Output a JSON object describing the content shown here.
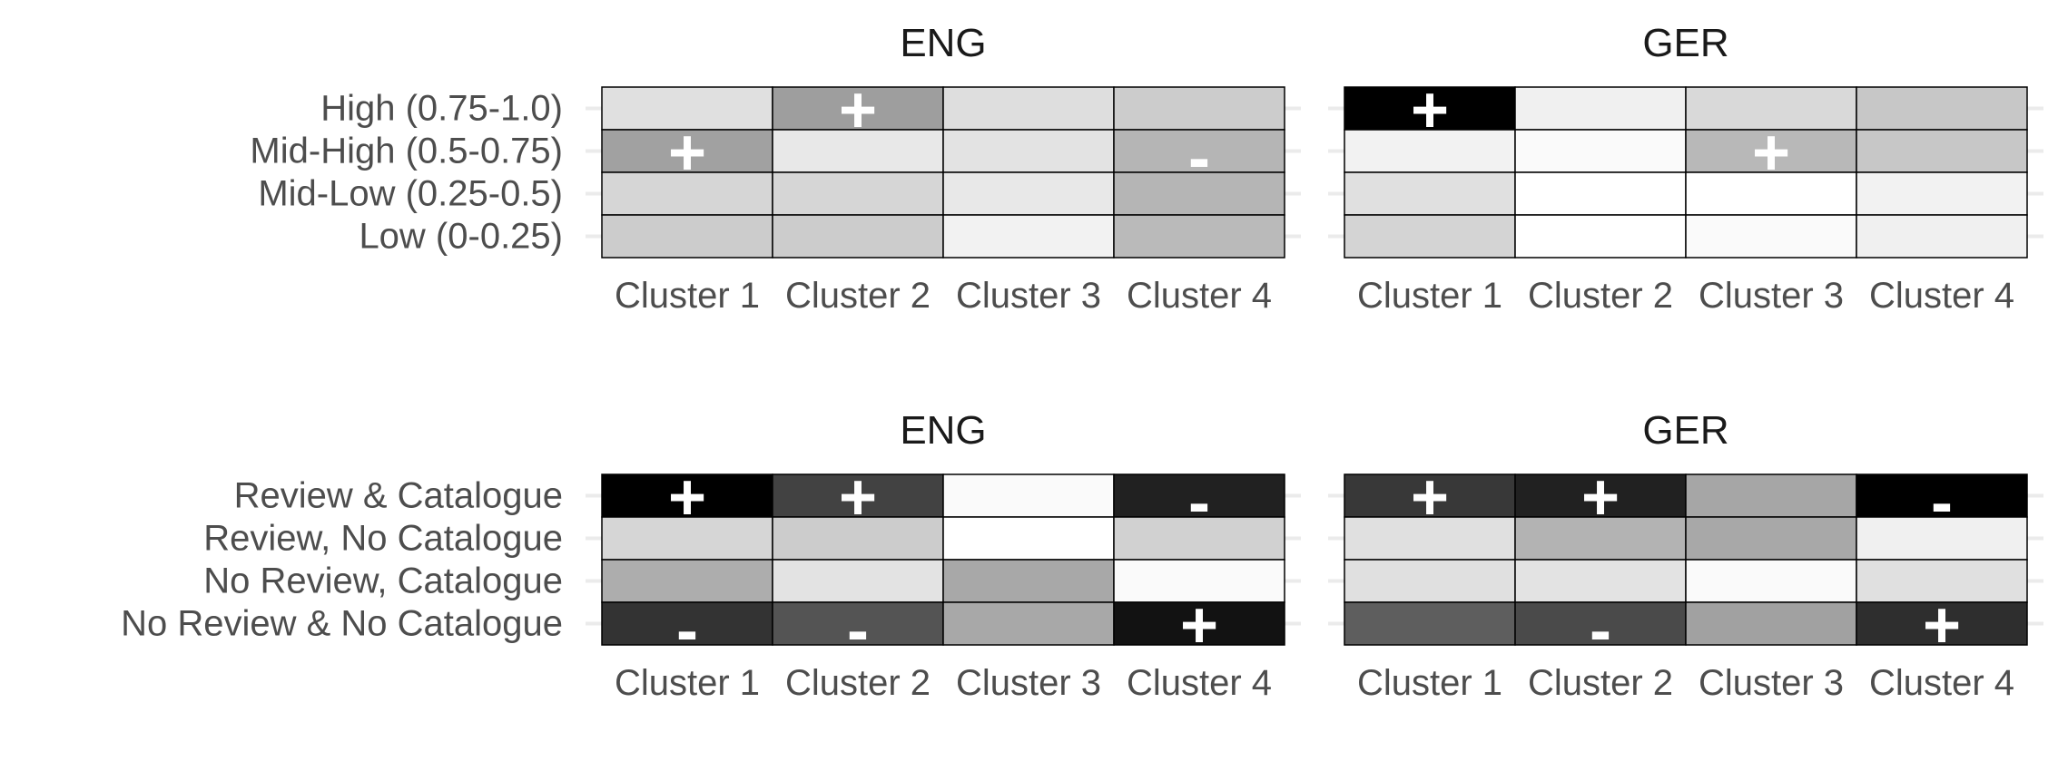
{
  "chart_data": [
    {
      "type": "heatmap",
      "rows": [
        "High (0.75-1.0)",
        "Mid-High (0.5-0.75)",
        "Mid-Low (0.25-0.5)",
        "Low (0-0.25)"
      ],
      "columns": [
        "Cluster 1",
        "Cluster 2",
        "Cluster 3",
        "Cluster 4"
      ],
      "color_scale": "white-to-black",
      "panels": [
        {
          "title": "ENG",
          "values": [
            [
              0.12,
              0.38,
              0.13,
              0.2
            ],
            [
              0.37,
              0.09,
              0.11,
              0.29
            ],
            [
              0.16,
              0.16,
              0.09,
              0.29
            ],
            [
              0.2,
              0.2,
              0.05,
              0.27
            ]
          ],
          "signs": [
            [
              "",
              "+",
              "",
              ""
            ],
            [
              "+",
              "",
              "",
              "-"
            ],
            [
              "",
              "",
              "",
              ""
            ],
            [
              "",
              "",
              "",
              ""
            ]
          ]
        },
        {
          "title": "GER",
          "values": [
            [
              1.0,
              0.06,
              0.15,
              0.22
            ],
            [
              0.05,
              0.02,
              0.28,
              0.22
            ],
            [
              0.12,
              0.0,
              0.0,
              0.05
            ],
            [
              0.17,
              0.0,
              0.02,
              0.06
            ]
          ],
          "signs": [
            [
              "+",
              "",
              "",
              ""
            ],
            [
              "",
              "",
              "+",
              ""
            ],
            [
              "",
              "",
              "",
              ""
            ],
            [
              "",
              "",
              "",
              ""
            ]
          ]
        }
      ]
    },
    {
      "type": "heatmap",
      "rows": [
        "Review & Catalogue",
        "Review, No Catalogue",
        "No Review, Catalogue",
        "No Review & No Catalogue"
      ],
      "columns": [
        "Cluster 1",
        "Cluster 2",
        "Cluster 3",
        "Cluster 4"
      ],
      "color_scale": "white-to-black",
      "panels": [
        {
          "title": "ENG",
          "values": [
            [
              1.0,
              0.74,
              0.02,
              0.87
            ],
            [
              0.16,
              0.2,
              0.0,
              0.18
            ],
            [
              0.32,
              0.11,
              0.34,
              0.02
            ],
            [
              0.8,
              0.67,
              0.34,
              0.93
            ]
          ],
          "signs": [
            [
              "+",
              "+",
              "",
              "-"
            ],
            [
              "",
              "",
              "",
              ""
            ],
            [
              "",
              "",
              "",
              ""
            ],
            [
              "-",
              "-",
              "",
              "+"
            ]
          ]
        },
        {
          "title": "GER",
          "values": [
            [
              0.78,
              0.87,
              0.35,
              1.0
            ],
            [
              0.12,
              0.3,
              0.34,
              0.06
            ],
            [
              0.12,
              0.11,
              0.02,
              0.12
            ],
            [
              0.63,
              0.71,
              0.37,
              0.82
            ]
          ],
          "signs": [
            [
              "+",
              "+",
              "",
              "-"
            ],
            [
              "",
              "",
              "",
              ""
            ],
            [
              "",
              "",
              "",
              ""
            ],
            [
              "",
              "-",
              "",
              "+"
            ]
          ]
        }
      ]
    }
  ]
}
